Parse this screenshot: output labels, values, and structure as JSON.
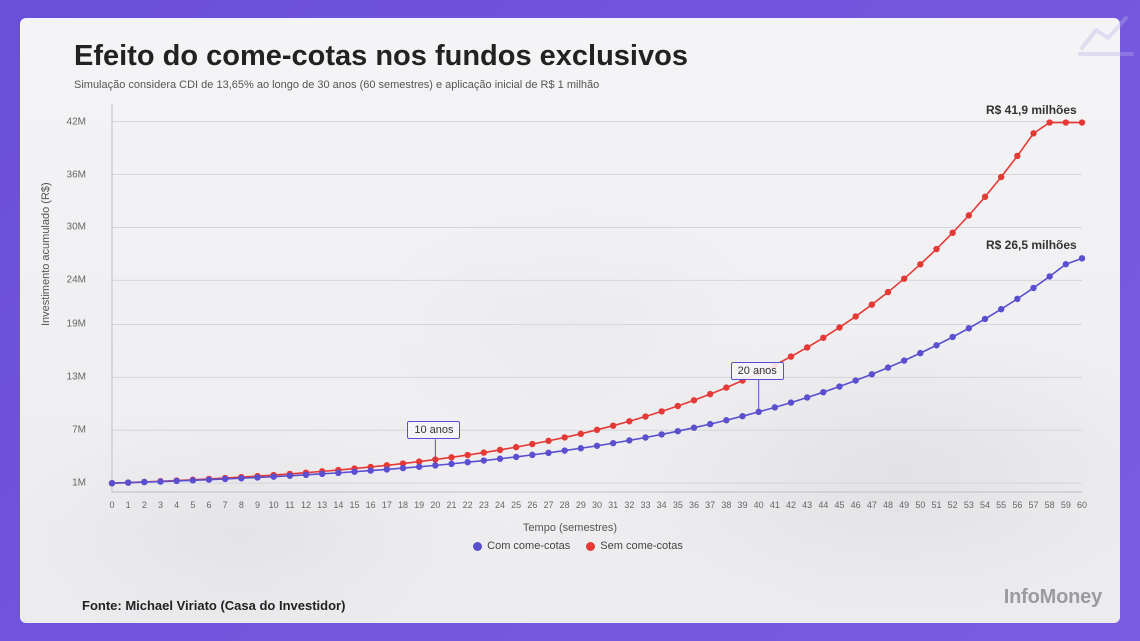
{
  "title": "Efeito do come-cotas nos fundos exclusivos",
  "subtitle": "Simulação considera CDI de 13,65% ao longo de 30 anos (60 semestres) e aplicação inicial de R$ 1 milhão",
  "chart": {
    "type": "line",
    "xlabel": "Tempo (semestres)",
    "ylabel": "Investimento acumulado (R$)",
    "xlim": [
      0,
      60
    ],
    "ylim": [
      0,
      44
    ],
    "x_ticks": [
      0,
      1,
      2,
      3,
      4,
      5,
      6,
      7,
      8,
      9,
      10,
      11,
      12,
      13,
      14,
      15,
      16,
      17,
      18,
      19,
      20,
      21,
      22,
      23,
      24,
      25,
      26,
      27,
      28,
      29,
      30,
      31,
      32,
      33,
      34,
      35,
      36,
      37,
      38,
      39,
      40,
      41,
      42,
      43,
      44,
      45,
      46,
      47,
      48,
      49,
      50,
      51,
      52,
      53,
      54,
      55,
      56,
      57,
      58,
      59,
      60
    ],
    "y_ticks": [
      {
        "value": 1,
        "label": "1M"
      },
      {
        "value": 7,
        "label": "7M"
      },
      {
        "value": 13,
        "label": "13M"
      },
      {
        "value": 19,
        "label": "19M"
      },
      {
        "value": 24,
        "label": "24M"
      },
      {
        "value": 30,
        "label": "30M"
      },
      {
        "value": 36,
        "label": "36M"
      },
      {
        "value": 42,
        "label": "42M"
      }
    ],
    "grid_color": "#d6d6da",
    "axis_color": "#bfbfc4",
    "background_color": "transparent",
    "label_fontsize": 11,
    "tick_fontsize": 10,
    "marker_size": 3.2,
    "line_width": 1.6,
    "series": [
      {
        "name": "Sem come-cotas",
        "color": "#e53935",
        "values": [
          1.0,
          1.07,
          1.14,
          1.22,
          1.3,
          1.39,
          1.48,
          1.58,
          1.69,
          1.8,
          1.92,
          2.05,
          2.19,
          2.34,
          2.49,
          2.66,
          2.84,
          3.03,
          3.23,
          3.45,
          3.68,
          3.93,
          4.19,
          4.47,
          4.77,
          5.09,
          5.44,
          5.8,
          6.19,
          6.6,
          7.05,
          7.52,
          8.02,
          8.56,
          9.14,
          9.75,
          10.4,
          11.1,
          11.84,
          12.64,
          13.49,
          14.39,
          15.36,
          16.39,
          17.49,
          18.66,
          19.91,
          21.25,
          22.67,
          24.19,
          25.82,
          27.55,
          29.4,
          31.37,
          33.47,
          35.72,
          38.11,
          40.67,
          41.9,
          41.9,
          41.9
        ],
        "end_label": "R$ 41,9 milhões"
      },
      {
        "name": "Com come-cotas",
        "color": "#5a4fcf",
        "values": [
          1.0,
          1.06,
          1.12,
          1.18,
          1.25,
          1.32,
          1.4,
          1.48,
          1.56,
          1.65,
          1.74,
          1.84,
          1.95,
          2.06,
          2.17,
          2.3,
          2.43,
          2.56,
          2.71,
          2.86,
          3.02,
          3.19,
          3.38,
          3.57,
          3.77,
          3.98,
          4.21,
          4.44,
          4.7,
          4.96,
          5.24,
          5.54,
          5.85,
          6.18,
          6.53,
          6.9,
          7.29,
          7.7,
          8.14,
          8.6,
          9.09,
          9.6,
          10.14,
          10.72,
          11.32,
          11.96,
          12.64,
          13.35,
          14.11,
          14.9,
          15.75,
          16.64,
          17.58,
          18.57,
          19.62,
          20.73,
          21.9,
          23.14,
          24.45,
          25.83,
          26.5
        ],
        "end_label": "R$ 26,5 milhões"
      }
    ],
    "annotations": [
      {
        "x": 20,
        "series": 1,
        "label": "10 anos",
        "dy": -36
      },
      {
        "x": 40,
        "series": 1,
        "label": "20 anos",
        "dy": -42
      }
    ],
    "legend": [
      {
        "label": "Com come-cotas",
        "color": "#5a4fcf"
      },
      {
        "label": "Sem come-cotas",
        "color": "#e53935"
      }
    ]
  },
  "source": "Fonte: Michael Viriato (Casa do Investidor)",
  "brand": "InfoMoney"
}
